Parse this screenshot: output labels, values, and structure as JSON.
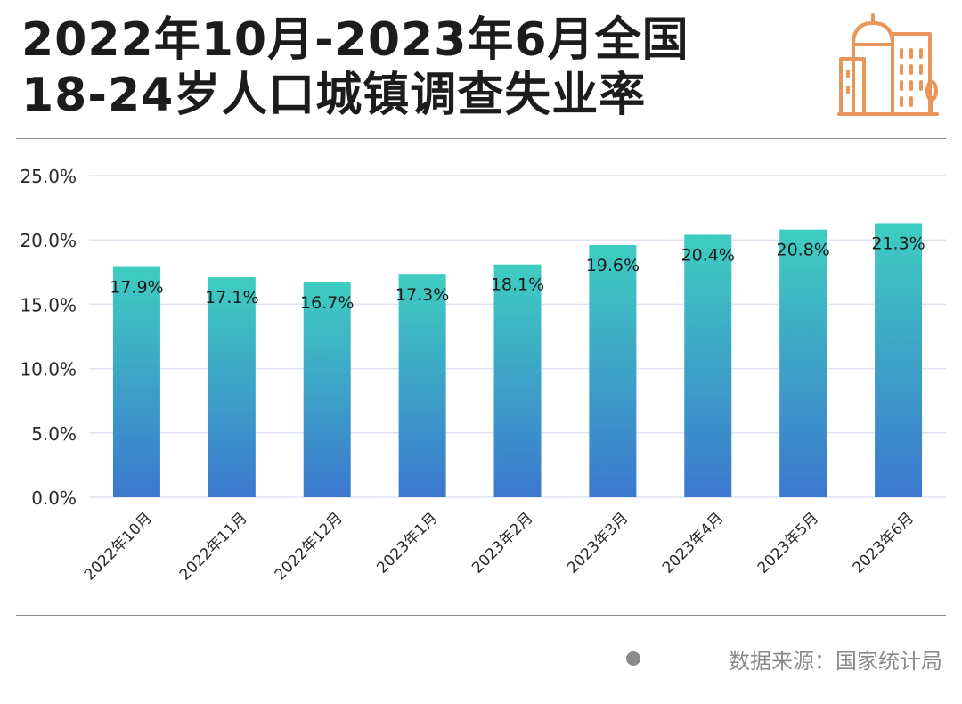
{
  "header": {
    "title_line1": "2022年10月-2023年6月全国",
    "title_line2": "18-24岁人口城镇调查失业率",
    "icon": "city-buildings-icon"
  },
  "footer": {
    "source": "数据来源：国家统计局"
  },
  "colors": {
    "bar_top": "#3ecdc0",
    "bar_bottom": "#3c78cf",
    "accent_icon": "#e8965a",
    "grid": "#dfe2f0"
  },
  "chart_data": {
    "type": "bar",
    "title": "2022年10月-2023年6月全国18-24岁人口城镇调查失业率",
    "categories": [
      "2022年10月",
      "2022年11月",
      "2022年12月",
      "2023年1月",
      "2023年2月",
      "2023年3月",
      "2023年4月",
      "2023年5月",
      "2023年6月"
    ],
    "values": [
      17.9,
      17.1,
      16.7,
      17.3,
      18.1,
      19.6,
      20.4,
      20.8,
      21.3
    ],
    "data_labels": [
      "17.9%",
      "17.1%",
      "16.7%",
      "17.3%",
      "18.1%",
      "19.6%",
      "20.4%",
      "20.8%",
      "21.3%"
    ],
    "y_ticks": [
      "0.0%",
      "5.0%",
      "10.0%",
      "15.0%",
      "20.0%",
      "25.0%"
    ],
    "ylim": [
      0,
      25
    ],
    "xlabel": "",
    "ylabel": "",
    "grid": true,
    "legend": "none"
  }
}
